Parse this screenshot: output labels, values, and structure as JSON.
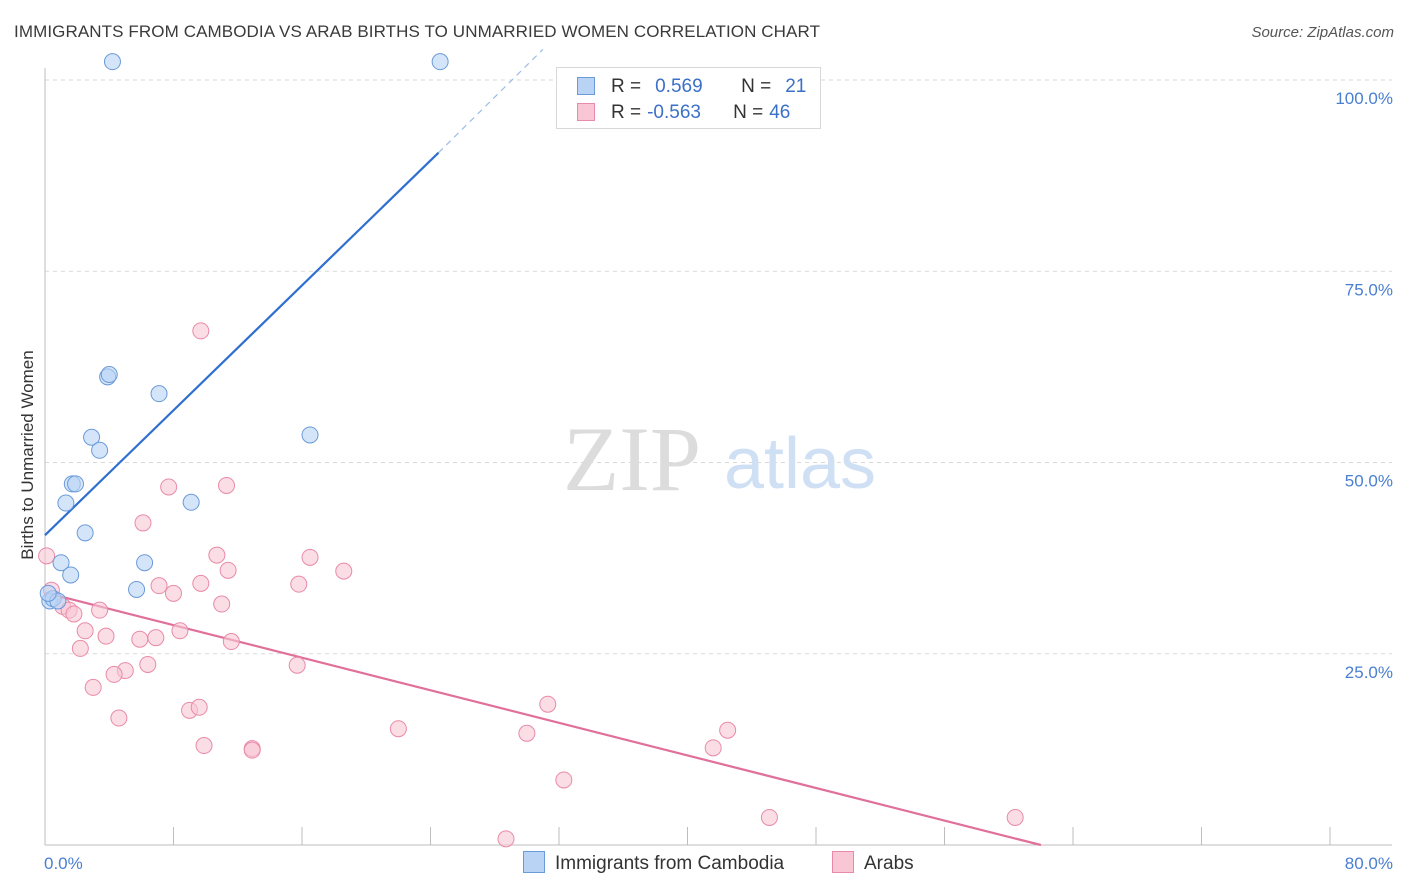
{
  "header": {
    "title": "IMMIGRANTS FROM CAMBODIA VS ARAB BIRTHS TO UNMARRIED WOMEN CORRELATION CHART",
    "source": "Source: ZipAtlas.com"
  },
  "watermark": {
    "zip": "ZIP",
    "atlas": "atlas"
  },
  "legend_top": {
    "rows": [
      {
        "r_label": "R =",
        "r_value": "0.569",
        "n_label": "N =",
        "n_value": "21"
      },
      {
        "r_label": "R =",
        "r_value": "-0.563",
        "n_label": "N =",
        "n_value": "46"
      }
    ]
  },
  "legend_bottom": {
    "items": [
      {
        "label": "Immigrants from Cambodia"
      },
      {
        "label": "Arabs"
      }
    ]
  },
  "colors": {
    "blue_fill": "#b9d3f5",
    "blue_stroke": "#6a9ad8",
    "blue_line": "#2e6fcf",
    "pink_fill": "#f9c6d6",
    "pink_stroke": "#e98aa8",
    "pink_line": "#e0709a",
    "tick_color": "#4a7fd0",
    "grid": "#d9d9d9"
  },
  "chart_data": {
    "type": "scatter",
    "title": "IMMIGRANTS FROM CAMBODIA VS ARAB BIRTHS TO UNMARRIED WOMEN CORRELATION CHART",
    "xlabel": "",
    "ylabel": "Births to Unmarried Women",
    "xlim": [
      0,
      80
    ],
    "ylim": [
      0,
      100
    ],
    "x_tick_labels": [
      "0.0%",
      "80.0%"
    ],
    "y_ticks": [
      25,
      50,
      75,
      100
    ],
    "y_tick_labels": [
      "25.0%",
      "50.0%",
      "75.0%",
      "100.0%"
    ],
    "series": [
      {
        "name": "Immigrants from Cambodia",
        "r": 0.569,
        "n": 21,
        "points": [
          [
            4.2,
            102.4
          ],
          [
            24.6,
            102.4
          ],
          [
            3.9,
            61.2
          ],
          [
            4.0,
            61.5
          ],
          [
            7.1,
            59.0
          ],
          [
            2.9,
            53.3
          ],
          [
            3.4,
            51.6
          ],
          [
            16.5,
            53.6
          ],
          [
            1.7,
            47.2
          ],
          [
            1.9,
            47.2
          ],
          [
            1.3,
            44.7
          ],
          [
            9.1,
            44.8
          ],
          [
            2.5,
            40.8
          ],
          [
            1.0,
            36.9
          ],
          [
            1.6,
            35.3
          ],
          [
            6.2,
            36.9
          ],
          [
            5.7,
            33.4
          ],
          [
            0.3,
            31.9
          ],
          [
            0.5,
            32.2
          ],
          [
            0.8,
            31.9
          ],
          [
            0.2,
            32.9
          ]
        ],
        "trend": {
          "x": [
            0.0,
            24.5
          ],
          "y": [
            40.5,
            90.5
          ]
        },
        "trend_dashed": {
          "x": [
            24.5,
            31.0
          ],
          "y": [
            90.5,
            104.0
          ]
        }
      },
      {
        "name": "Arabs",
        "r": -0.563,
        "n": 46,
        "points": [
          [
            9.7,
            67.2
          ],
          [
            7.7,
            46.8
          ],
          [
            11.3,
            47.0
          ],
          [
            6.1,
            42.1
          ],
          [
            10.7,
            37.9
          ],
          [
            16.5,
            37.6
          ],
          [
            18.6,
            35.8
          ],
          [
            11.4,
            35.9
          ],
          [
            9.7,
            34.2
          ],
          [
            7.1,
            33.9
          ],
          [
            15.8,
            34.1
          ],
          [
            8.0,
            32.9
          ],
          [
            11.0,
            31.5
          ],
          [
            1.1,
            31.2
          ],
          [
            1.5,
            30.7
          ],
          [
            1.8,
            30.2
          ],
          [
            3.4,
            30.7
          ],
          [
            2.5,
            28.0
          ],
          [
            6.9,
            27.1
          ],
          [
            8.4,
            28.0
          ],
          [
            11.6,
            26.6
          ],
          [
            3.8,
            27.3
          ],
          [
            5.9,
            26.9
          ],
          [
            2.2,
            25.7
          ],
          [
            6.4,
            23.6
          ],
          [
            15.7,
            23.5
          ],
          [
            5.0,
            22.8
          ],
          [
            4.3,
            22.3
          ],
          [
            3.0,
            20.6
          ],
          [
            9.0,
            17.6
          ],
          [
            9.6,
            18.0
          ],
          [
            4.6,
            16.6
          ],
          [
            22.0,
            15.2
          ],
          [
            30.0,
            14.6
          ],
          [
            31.3,
            18.4
          ],
          [
            42.5,
            15.0
          ],
          [
            41.6,
            12.7
          ],
          [
            9.9,
            13.0
          ],
          [
            12.9,
            12.6
          ],
          [
            12.9,
            12.4
          ],
          [
            32.3,
            8.5
          ],
          [
            45.1,
            3.6
          ],
          [
            60.4,
            3.6
          ],
          [
            28.7,
            0.8
          ],
          [
            0.1,
            37.8
          ],
          [
            0.4,
            33.3
          ]
        ],
        "trend": {
          "x": [
            0.0,
            62.0
          ],
          "y": [
            33.0,
            0.0
          ]
        }
      }
    ]
  }
}
